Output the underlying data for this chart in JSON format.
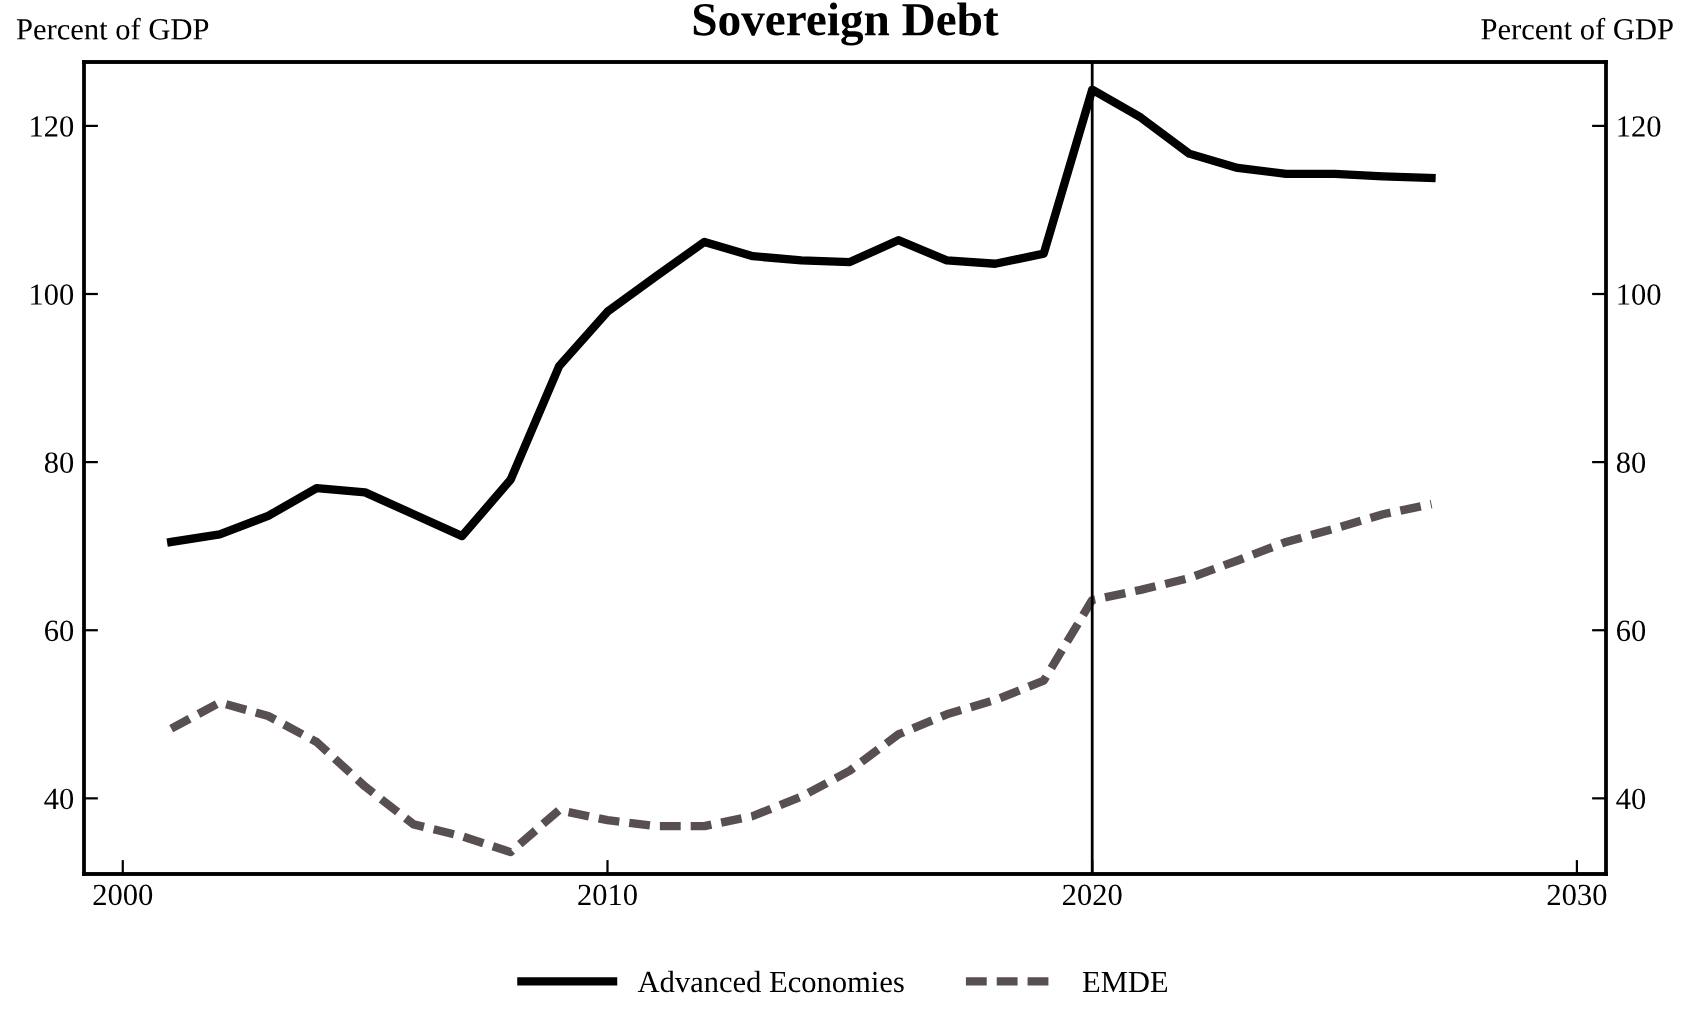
{
  "chart_data": {
    "type": "line",
    "title": "Sovereign Debt",
    "ylabel": "Percent of GDP",
    "y2label": "Percent of GDP",
    "x": [
      2001,
      2002,
      2003,
      2004,
      2005,
      2006,
      2007,
      2008,
      2009,
      2010,
      2011,
      2012,
      2013,
      2014,
      2015,
      2016,
      2017,
      2018,
      2019,
      2020,
      2021,
      2022,
      2023,
      2024,
      2025,
      2026,
      2027
    ],
    "series": [
      {
        "name": "Advanced Economies",
        "color": "#000000",
        "line_style": "solid",
        "values": [
          70.5,
          71.4,
          73.6,
          76.9,
          76.4,
          73.8,
          71.2,
          77.9,
          91.4,
          97.9,
          102.1,
          106.2,
          104.5,
          104,
          103.8,
          106.4,
          104,
          103.6,
          104.8,
          124.3,
          121,
          116.7,
          115,
          114.3,
          114.3,
          114,
          113.8
        ]
      },
      {
        "name": "EMDE",
        "color": "#585050",
        "line_style": "dashed",
        "values": [
          48.3,
          51.4,
          49.8,
          46.7,
          41.4,
          36.9,
          35.5,
          33.6,
          38.6,
          37.4,
          36.7,
          36.7,
          37.9,
          40.2,
          43.3,
          47.6,
          50,
          51.7,
          54,
          63.6,
          64.8,
          66.2,
          68.3,
          70.5,
          72.1,
          73.8,
          75
        ]
      }
    ],
    "xlim": [
      1999.2,
      2030.6
    ],
    "xticks": [
      2000,
      2010,
      2020,
      2030
    ],
    "ylim": [
      31,
      127.6
    ],
    "yticks": [
      40,
      60,
      80,
      100,
      120
    ],
    "y2lim": [
      31,
      127.6
    ],
    "y2ticks": [
      40,
      60,
      80,
      100,
      120
    ],
    "ref_lines": [
      {
        "axis": "x",
        "value": 2020,
        "color": "#000000"
      }
    ],
    "grid": false,
    "legend": "bottom",
    "marker": "none"
  }
}
